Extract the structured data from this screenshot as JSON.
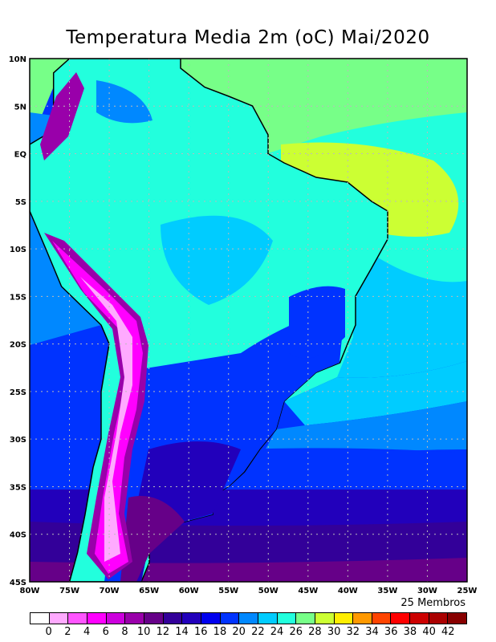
{
  "title": "Temperatura Media 2m (oC) Mai/2020",
  "members_label": "25 Membros",
  "axes": {
    "lat_labels": [
      "10N",
      "5N",
      "EQ",
      "5S",
      "10S",
      "15S",
      "20S",
      "25S",
      "30S",
      "35S",
      "40S",
      "45S"
    ],
    "lon_labels": [
      "80W",
      "75W",
      "70W",
      "65W",
      "60W",
      "55W",
      "50W",
      "45W",
      "40W",
      "35W",
      "30W",
      "25W"
    ]
  },
  "legend": {
    "labels": [
      "0",
      "2",
      "4",
      "6",
      "8",
      "10",
      "12",
      "14",
      "16",
      "18",
      "20",
      "22",
      "24",
      "26",
      "28",
      "30",
      "32",
      "34",
      "36",
      "38",
      "40",
      "42"
    ],
    "colors": [
      "#ffffff",
      "#ffaaff",
      "#ff55ff",
      "#ff00ff",
      "#cc00dd",
      "#9900aa",
      "#660088",
      "#330099",
      "#2200bb",
      "#0000ee",
      "#0033ff",
      "#0088ff",
      "#00ccff",
      "#22ffdd",
      "#77ff88",
      "#ccff33",
      "#ffee00",
      "#ff9900",
      "#ff4400",
      "#ff0000",
      "#cc0000",
      "#aa0000",
      "#880000"
    ]
  }
}
